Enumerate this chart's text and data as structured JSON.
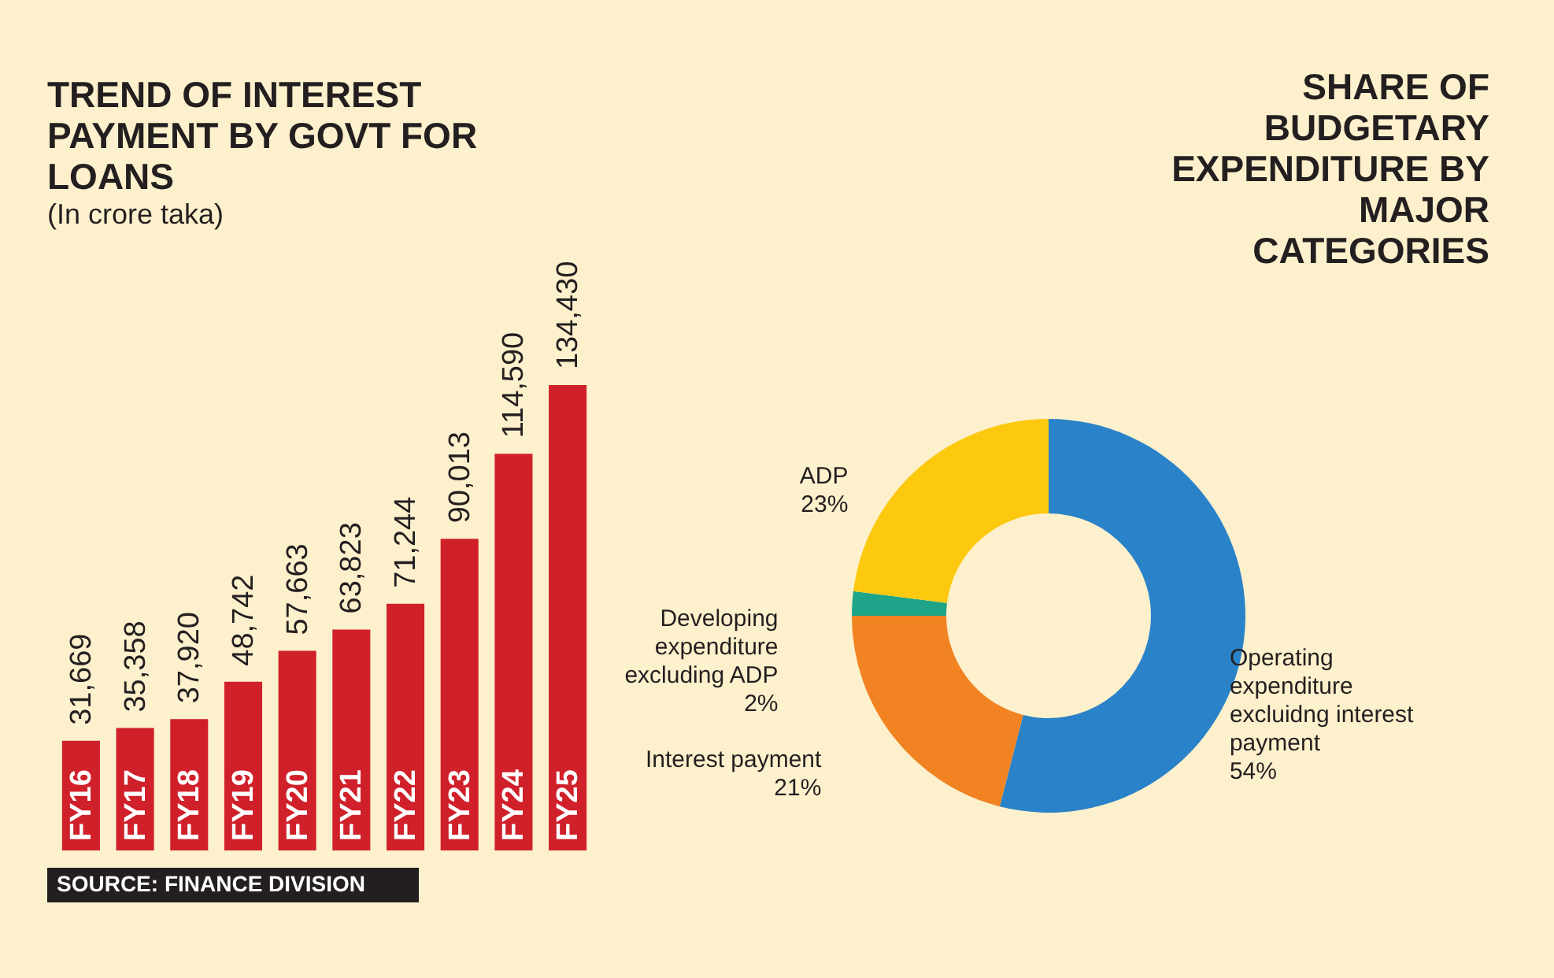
{
  "chart_data": [
    {
      "type": "bar",
      "title": "TREND OF INTEREST PAYMENT BY GOVT FOR LOANS",
      "subtitle": "(In crore taka)",
      "categories": [
        "FY16",
        "FY17",
        "FY18",
        "FY19",
        "FY20",
        "FY21",
        "FY22",
        "FY23",
        "FY24",
        "FY25"
      ],
      "values": [
        31669,
        35358,
        37920,
        48742,
        57663,
        63823,
        71244,
        90013,
        114590,
        134430
      ],
      "color": "#d0202a",
      "value_labels": [
        "31,669",
        "35,358",
        "37,920",
        "48,742",
        "57,663",
        "63,823",
        "71,244",
        "90,013",
        "114,590",
        "134,430"
      ],
      "annotations": [
        "SOURCE: FINANCE DIVISION"
      ]
    },
    {
      "type": "donut",
      "title": "SHARE OF BUDGETARY EXPENDITURE BY MAJOR CATEGORIES",
      "categories": [
        "Operating expenditure excluidng interest payment",
        "Interest payment",
        "Developing expenditure excluding ADP",
        "ADP"
      ],
      "values": [
        54,
        21,
        2,
        23
      ],
      "colors": [
        "#2a82c8",
        "#f28322",
        "#1ea589",
        "#fdc90f"
      ],
      "value_labels": [
        "54%",
        "21%",
        "2%",
        "23%"
      ]
    }
  ]
}
